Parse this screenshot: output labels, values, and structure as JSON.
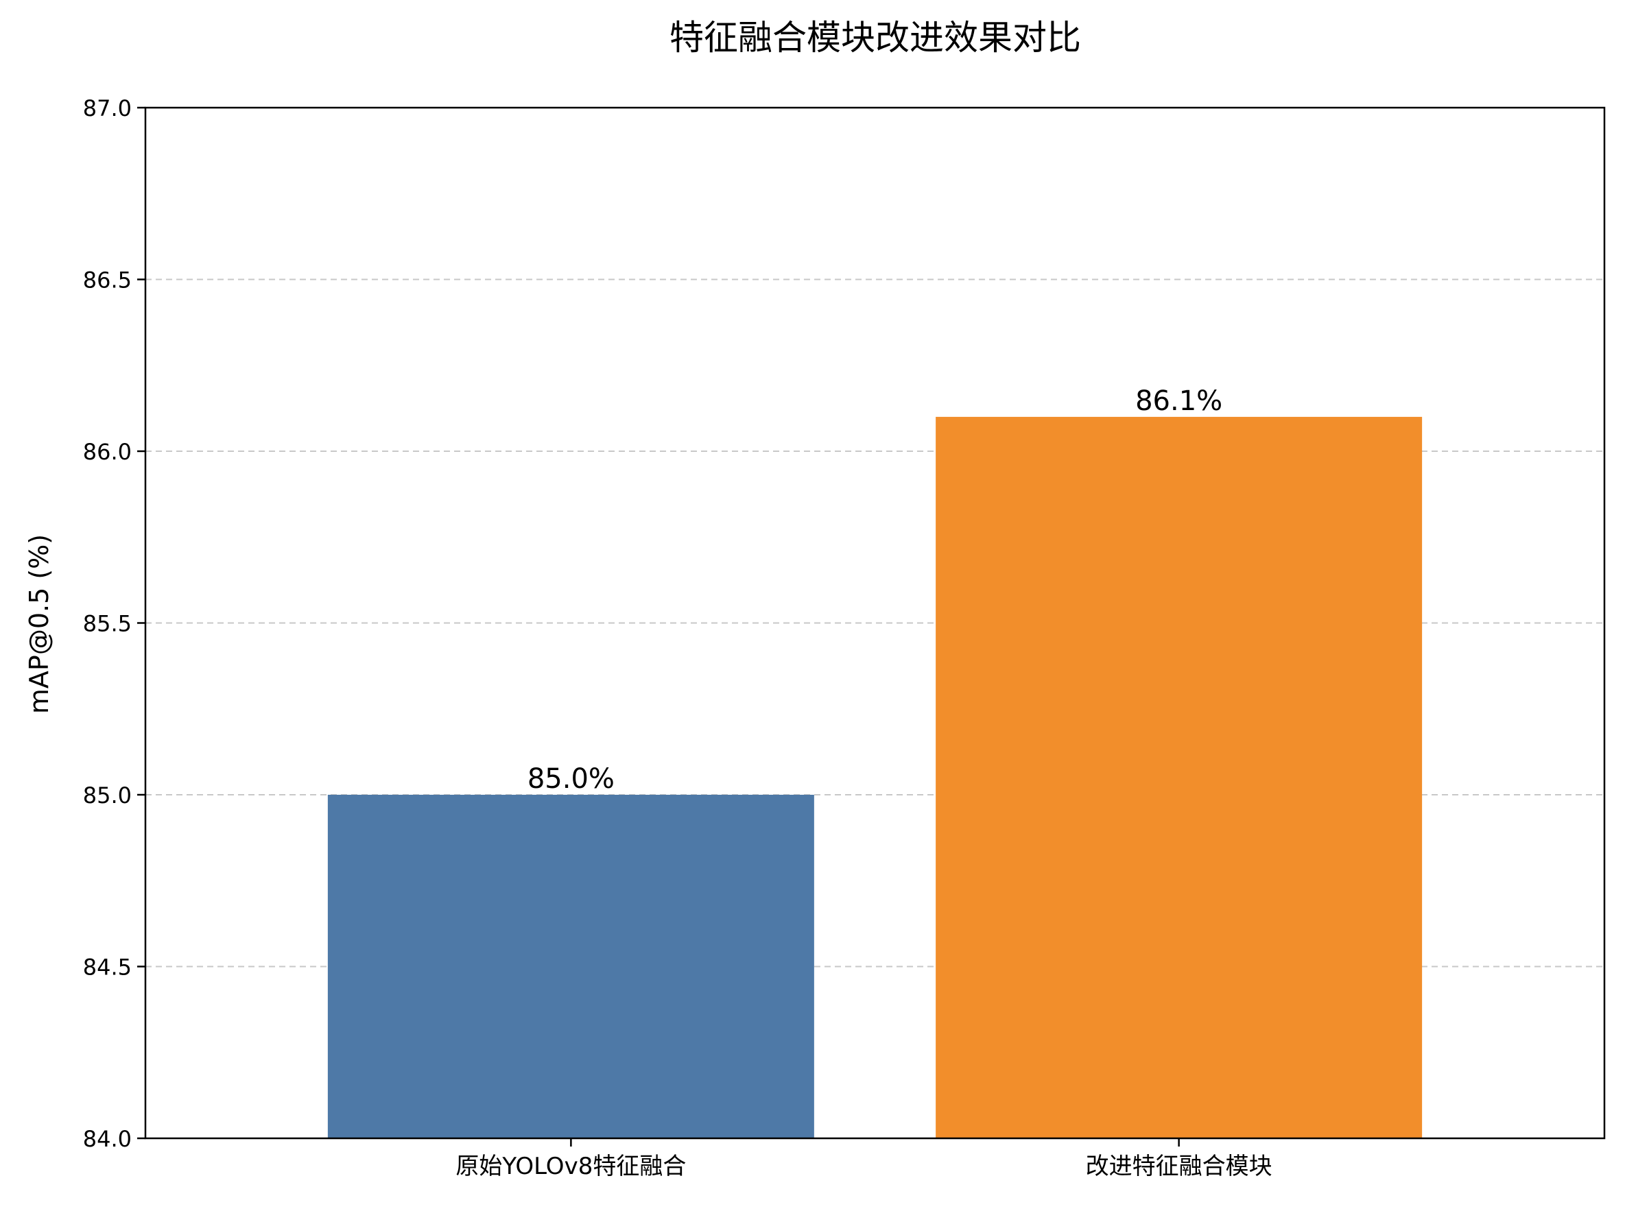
{
  "chart_data": {
    "type": "bar",
    "title": "特征融合模块改进效果对比",
    "xlabel": "",
    "ylabel": "mAP@0.5 (%)",
    "categories": [
      "原始YOLOv8特征融合",
      "改进特征融合模块"
    ],
    "values": [
      85.0,
      86.1
    ],
    "value_labels": [
      "85.0%",
      "86.1%"
    ],
    "bar_colors": [
      "#4e79a7",
      "#f28e2b"
    ],
    "ylim": [
      84.0,
      87.0
    ],
    "yticks": [
      84.0,
      84.5,
      85.0,
      85.5,
      86.0,
      86.5,
      87.0
    ],
    "ytick_labels": [
      "84.0",
      "84.5",
      "85.0",
      "85.5",
      "86.0",
      "86.5",
      "87.0"
    ],
    "grid": "horizontal dashed",
    "legend": "none"
  }
}
